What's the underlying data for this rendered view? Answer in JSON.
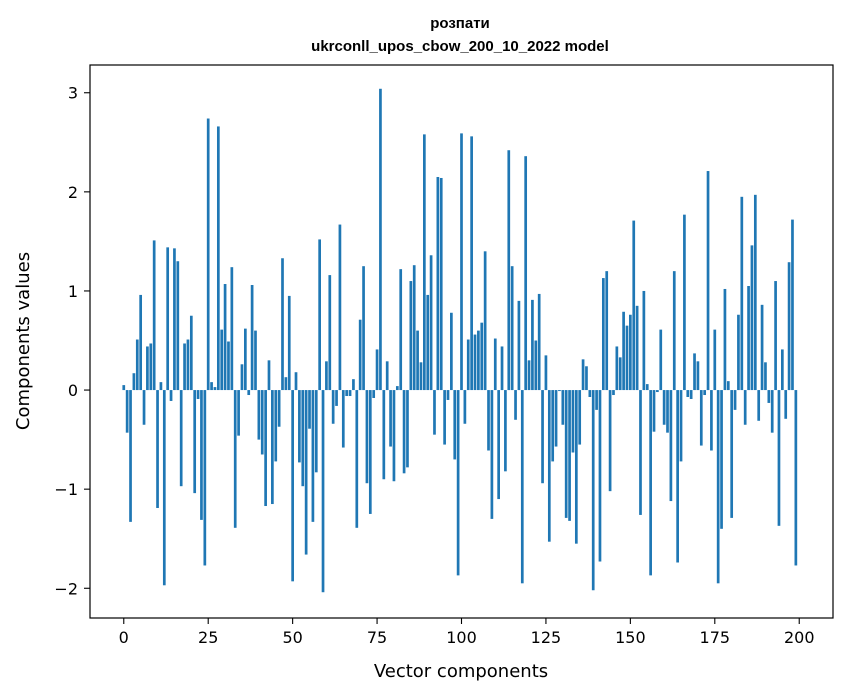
{
  "chart_data": {
    "type": "bar",
    "title": "розпати",
    "subtitle": "ukrconll_upos_cbow_200_10_2022 model",
    "xlabel": "Vector components",
    "ylabel": "Components values",
    "xlim": [
      -10,
      210
    ],
    "ylim": [
      -2.3,
      3.28
    ],
    "xticks": [
      0,
      25,
      50,
      75,
      100,
      125,
      150,
      175,
      200
    ],
    "yticks": [
      -2,
      -1,
      0,
      1,
      2,
      3
    ],
    "xtick_labels": [
      "0",
      "25",
      "50",
      "75",
      "100",
      "125",
      "150",
      "175",
      "200"
    ],
    "ytick_labels": [
      "−2",
      "−1",
      "0",
      "1",
      "2",
      "3"
    ],
    "bar_color": "#1f77b4",
    "grid": false,
    "legend": "none",
    "x": [
      0,
      1,
      2,
      3,
      4,
      5,
      6,
      7,
      8,
      9,
      10,
      11,
      12,
      13,
      14,
      15,
      16,
      17,
      18,
      19,
      20,
      21,
      22,
      23,
      24,
      25,
      26,
      27,
      28,
      29,
      30,
      31,
      32,
      33,
      34,
      35,
      36,
      37,
      38,
      39,
      40,
      41,
      42,
      43,
      44,
      45,
      46,
      47,
      48,
      49,
      50,
      51,
      52,
      53,
      54,
      55,
      56,
      57,
      58,
      59,
      60,
      61,
      62,
      63,
      64,
      65,
      66,
      67,
      68,
      69,
      70,
      71,
      72,
      73,
      74,
      75,
      76,
      77,
      78,
      79,
      80,
      81,
      82,
      83,
      84,
      85,
      86,
      87,
      88,
      89,
      90,
      91,
      92,
      93,
      94,
      95,
      96,
      97,
      98,
      99,
      100,
      101,
      102,
      103,
      104,
      105,
      106,
      107,
      108,
      109,
      110,
      111,
      112,
      113,
      114,
      115,
      116,
      117,
      118,
      119,
      120,
      121,
      122,
      123,
      124,
      125,
      126,
      127,
      128,
      129,
      130,
      131,
      132,
      133,
      134,
      135,
      136,
      137,
      138,
      139,
      140,
      141,
      142,
      143,
      144,
      145,
      146,
      147,
      148,
      149,
      150,
      151,
      152,
      153,
      154,
      155,
      156,
      157,
      158,
      159,
      160,
      161,
      162,
      163,
      164,
      165,
      166,
      167,
      168,
      169,
      170,
      171,
      172,
      173,
      174,
      175,
      176,
      177,
      178,
      179,
      180,
      181,
      182,
      183,
      184,
      185,
      186,
      187,
      188,
      189,
      190,
      191,
      192,
      193,
      194,
      195,
      196,
      197,
      198,
      199
    ],
    "values": [
      0.05,
      -0.43,
      -1.33,
      0.17,
      0.51,
      0.96,
      -0.35,
      0.44,
      0.47,
      1.51,
      -1.19,
      0.08,
      -1.97,
      1.44,
      -0.11,
      1.43,
      1.3,
      -0.97,
      0.47,
      0.51,
      0.75,
      -1.04,
      -0.09,
      -1.31,
      -1.77,
      2.74,
      0.08,
      0.03,
      2.66,
      0.61,
      1.07,
      0.49,
      1.24,
      -1.39,
      -0.46,
      0.26,
      0.62,
      -0.05,
      1.06,
      0.6,
      -0.5,
      -0.65,
      -1.17,
      0.3,
      -1.15,
      -0.72,
      -0.37,
      1.33,
      0.13,
      0.95,
      -1.93,
      0.18,
      -0.73,
      -0.97,
      -1.66,
      -0.39,
      -1.33,
      -0.83,
      1.52,
      -2.04,
      0.29,
      1.16,
      -0.34,
      -0.16,
      1.67,
      -0.58,
      -0.06,
      -0.06,
      0.11,
      -1.39,
      0.71,
      1.25,
      -0.94,
      -1.25,
      -0.08,
      0.41,
      3.04,
      -0.9,
      0.29,
      -0.57,
      -0.92,
      0.04,
      1.22,
      -0.84,
      -0.78,
      1.1,
      1.26,
      0.6,
      0.28,
      2.58,
      0.96,
      1.36,
      -0.45,
      2.15,
      2.14,
      -0.55,
      -0.1,
      0.78,
      -0.7,
      -1.87,
      2.59,
      -0.34,
      0.51,
      2.56,
      0.56,
      0.6,
      0.68,
      1.4,
      -0.61,
      -1.3,
      0.52,
      -1.1,
      0.44,
      -0.82,
      2.42,
      1.25,
      -0.3,
      0.9,
      -1.95,
      2.36,
      0.3,
      0.91,
      0.5,
      0.97,
      -0.94,
      0.35,
      -1.53,
      -0.72,
      -0.57,
      -0.01,
      -0.35,
      -1.29,
      -1.32,
      -0.63,
      -1.55,
      -0.55,
      0.31,
      0.24,
      -0.07,
      -2.02,
      -0.2,
      -1.73,
      1.13,
      1.2,
      -1.02,
      -0.05,
      0.44,
      0.33,
      0.79,
      0.65,
      0.76,
      1.71,
      0.85,
      -1.26,
      1.0,
      0.06,
      -1.87,
      -0.42,
      -0.02,
      0.61,
      -0.35,
      -0.43,
      -1.12,
      1.2,
      -1.74,
      -0.72,
      1.77,
      -0.07,
      -0.09,
      0.37,
      0.29,
      -0.56,
      -0.05,
      2.21,
      -0.61,
      0.61,
      -1.95,
      -1.4,
      1.02,
      0.09,
      -1.29,
      -0.2,
      0.76,
      1.95,
      -0.35,
      1.05,
      1.46,
      1.97,
      -0.31,
      0.86,
      0.28,
      -0.13,
      -0.43,
      1.1,
      -1.37,
      0.41,
      -0.29,
      1.29,
      1.72,
      -1.77
    ]
  }
}
